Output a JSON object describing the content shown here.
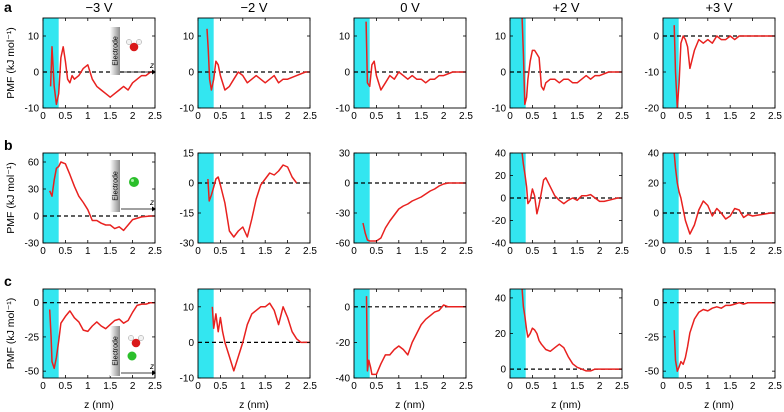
{
  "columns": [
    "−3 V",
    "−2 V",
    "0 V",
    "+2 V",
    "+3 V"
  ],
  "rows": [
    {
      "letter": "a",
      "ylabel": "PMF (kJ mol⁻¹)"
    },
    {
      "letter": "b",
      "ylabel": "PMF (kJ mol⁻¹)"
    },
    {
      "letter": "c",
      "ylabel": "PMF (kJ mol⁻¹)"
    }
  ],
  "xlabel": "z (nm)",
  "xticks": [
    "0",
    "0.5",
    "1",
    "1.5",
    "2",
    "2.5"
  ],
  "inset_labels": {
    "electrode": "Electrode",
    "z": "z"
  },
  "colors": {
    "curve": "#e8211f",
    "electrode_band": "#33e6f0",
    "zero_line": "#000000",
    "ion_green": "#2bbf2b",
    "oxygen_red": "#d9191a",
    "hydrogen_white": "#f2f2f2"
  },
  "chart_data": [
    {
      "type": "line",
      "panel": "a",
      "column": "−3 V",
      "xlim": [
        0,
        2.5
      ],
      "ylim": [
        -10,
        15
      ],
      "yticks": [
        -10,
        0,
        10
      ],
      "electrode_region": [
        0,
        0.35
      ],
      "x": [
        0.17,
        0.2,
        0.25,
        0.3,
        0.35,
        0.4,
        0.45,
        0.5,
        0.55,
        0.6,
        0.65,
        0.7,
        0.8,
        0.9,
        1.0,
        1.1,
        1.2,
        1.3,
        1.4,
        1.5,
        1.6,
        1.7,
        1.8,
        1.9,
        2.0,
        2.1,
        2.2,
        2.3,
        2.4,
        2.5
      ],
      "y": [
        -4,
        7,
        -4,
        -9,
        -6,
        4,
        7,
        3,
        -2,
        -3,
        -1,
        -2,
        -1,
        1,
        2,
        -2,
        -4,
        -5,
        -6,
        -7,
        -6,
        -5,
        -4,
        -5,
        -3,
        -2,
        -1,
        -1,
        0,
        0
      ]
    },
    {
      "type": "line",
      "panel": "a",
      "column": "−2 V",
      "xlim": [
        0,
        2.5
      ],
      "ylim": [
        -10,
        15
      ],
      "yticks": [
        -10,
        0,
        10
      ],
      "electrode_region": [
        0,
        0.35
      ],
      "x": [
        0.2,
        0.23,
        0.26,
        0.3,
        0.35,
        0.4,
        0.45,
        0.5,
        0.6,
        0.7,
        0.8,
        0.9,
        1.0,
        1.1,
        1.2,
        1.3,
        1.4,
        1.5,
        1.6,
        1.7,
        1.8,
        1.9,
        2.0,
        2.2,
        2.4,
        2.5
      ],
      "y": [
        12,
        6,
        -2,
        -5,
        -2,
        3,
        2,
        -1,
        -5,
        -4,
        -2,
        0,
        -1,
        -3,
        -2,
        -1,
        -2,
        -3,
        -2,
        -1,
        -3,
        -2,
        -2,
        -1,
        0,
        0
      ]
    },
    {
      "type": "line",
      "panel": "a",
      "column": "0 V",
      "xlim": [
        0,
        2.5
      ],
      "ylim": [
        -10,
        15
      ],
      "yticks": [
        -10,
        0,
        10
      ],
      "electrode_region": [
        0,
        0.35
      ],
      "x": [
        0.27,
        0.3,
        0.35,
        0.4,
        0.45,
        0.5,
        0.6,
        0.7,
        0.8,
        0.9,
        1.0,
        1.1,
        1.2,
        1.3,
        1.4,
        1.5,
        1.6,
        1.7,
        1.8,
        1.9,
        2.0,
        2.2,
        2.4,
        2.5
      ],
      "y": [
        14,
        -3,
        -4,
        2,
        3,
        -1,
        -5,
        -3,
        -1,
        -2,
        0,
        -1,
        -2,
        -1,
        -2,
        -2,
        -3,
        -2,
        -2,
        -1,
        -1,
        0,
        0,
        0
      ]
    },
    {
      "type": "line",
      "panel": "a",
      "column": "+2 V",
      "xlim": [
        0,
        2.5
      ],
      "ylim": [
        -10,
        15
      ],
      "yticks": [
        -10,
        0,
        10
      ],
      "electrode_region": [
        0,
        0.35
      ],
      "x": [
        0.27,
        0.3,
        0.33,
        0.37,
        0.4,
        0.45,
        0.5,
        0.55,
        0.6,
        0.65,
        0.7,
        0.75,
        0.8,
        0.9,
        1.0,
        1.1,
        1.2,
        1.3,
        1.4,
        1.5,
        1.6,
        1.7,
        1.8,
        1.9,
        2.0,
        2.2,
        2.4,
        2.5
      ],
      "y": [
        15,
        5,
        -9,
        -7,
        -2,
        3,
        6,
        6,
        5,
        4,
        -4,
        -5,
        -3,
        -2,
        -2,
        -3,
        -2,
        -2,
        -3,
        -3,
        -2,
        -1,
        -2,
        -1,
        -1,
        0,
        0,
        0
      ]
    },
    {
      "type": "line",
      "panel": "a",
      "column": "+3 V",
      "xlim": [
        0,
        2.5
      ],
      "ylim": [
        -20,
        5
      ],
      "yticks": [
        -20,
        -10,
        0
      ],
      "electrode_region": [
        0,
        0.35
      ],
      "x": [
        0.25,
        0.28,
        0.32,
        0.36,
        0.4,
        0.45,
        0.5,
        0.55,
        0.6,
        0.7,
        0.8,
        0.9,
        1.0,
        1.1,
        1.2,
        1.3,
        1.4,
        1.5,
        1.6,
        1.7,
        1.8,
        1.9,
        2.0,
        2.2,
        2.4,
        2.5
      ],
      "y": [
        3,
        -10,
        -20,
        -13,
        -2,
        0,
        -1,
        -3,
        -9,
        -4,
        -1,
        -2,
        -1,
        -2,
        0,
        -1,
        -1,
        0,
        -1,
        0,
        0,
        0,
        0,
        0,
        0,
        0
      ]
    },
    {
      "type": "line",
      "panel": "b",
      "column": "−3 V",
      "xlim": [
        0,
        2.5
      ],
      "ylim": [
        -30,
        70
      ],
      "yticks": [
        -30,
        0,
        30,
        60
      ],
      "electrode_region": [
        0,
        0.35
      ],
      "x": [
        0.15,
        0.2,
        0.25,
        0.3,
        0.35,
        0.4,
        0.5,
        0.6,
        0.7,
        0.8,
        0.9,
        1.0,
        1.1,
        1.2,
        1.3,
        1.4,
        1.5,
        1.6,
        1.7,
        1.8,
        1.9,
        2.0,
        2.2,
        2.4,
        2.5
      ],
      "y": [
        28,
        22,
        40,
        53,
        55,
        60,
        58,
        46,
        33,
        22,
        15,
        7,
        -5,
        -5,
        -8,
        -10,
        -10,
        -14,
        -12,
        -16,
        -10,
        -4,
        -1,
        0,
        0
      ]
    },
    {
      "type": "line",
      "panel": "b",
      "column": "−2 V",
      "xlim": [
        0,
        2.5
      ],
      "ylim": [
        -30,
        15
      ],
      "yticks": [
        -30,
        -15,
        0,
        15
      ],
      "electrode_region": [
        0,
        0.35
      ],
      "x": [
        0.22,
        0.25,
        0.3,
        0.35,
        0.4,
        0.45,
        0.5,
        0.6,
        0.7,
        0.8,
        0.9,
        1.0,
        1.1,
        1.2,
        1.3,
        1.4,
        1.5,
        1.6,
        1.7,
        1.8,
        1.9,
        2.0,
        2.1,
        2.2
      ],
      "y": [
        2,
        -9,
        -6,
        -2,
        2,
        3,
        -1,
        -10,
        -24,
        -27,
        -24,
        -22,
        -27,
        -18,
        -8,
        -1,
        2,
        5,
        4,
        6,
        9,
        8,
        3,
        0
      ]
    },
    {
      "type": "line",
      "panel": "b",
      "column": "0 V",
      "xlim": [
        0,
        2.5
      ],
      "ylim": [
        -60,
        30
      ],
      "yticks": [
        -60,
        -30,
        0,
        30
      ],
      "electrode_region": [
        0,
        0.35
      ],
      "x": [
        0.2,
        0.25,
        0.3,
        0.35,
        0.4,
        0.5,
        0.6,
        0.7,
        0.8,
        0.9,
        1.0,
        1.1,
        1.2,
        1.3,
        1.4,
        1.5,
        1.6,
        1.7,
        1.8,
        1.9,
        2.0,
        2.1,
        2.2,
        2.3,
        2.5
      ],
      "y": [
        -40,
        -50,
        -57,
        -58,
        -58,
        -58,
        -55,
        -45,
        -38,
        -32,
        -26,
        -23,
        -21,
        -18,
        -16,
        -14,
        -11,
        -8,
        -6,
        -3,
        -1,
        0,
        0,
        0,
        0
      ]
    },
    {
      "type": "line",
      "panel": "b",
      "column": "+2 V",
      "xlim": [
        0,
        2.5
      ],
      "ylim": [
        -40,
        40
      ],
      "yticks": [
        -40,
        -20,
        0,
        20,
        40
      ],
      "electrode_region": [
        0,
        0.35
      ],
      "x": [
        0.27,
        0.3,
        0.33,
        0.37,
        0.4,
        0.45,
        0.5,
        0.55,
        0.6,
        0.65,
        0.7,
        0.75,
        0.8,
        0.9,
        1.0,
        1.1,
        1.2,
        1.3,
        1.4,
        1.5,
        1.6,
        1.7,
        1.8,
        1.9,
        2.0,
        2.1,
        2.2,
        2.4,
        2.5
      ],
      "y": [
        40,
        30,
        22,
        10,
        -5,
        -2,
        8,
        2,
        -14,
        -6,
        5,
        16,
        18,
        10,
        2,
        -2,
        -5,
        -2,
        0,
        -2,
        2,
        2,
        3,
        0,
        -3,
        -3,
        -2,
        0,
        0
      ]
    },
    {
      "type": "line",
      "panel": "b",
      "column": "+3 V",
      "xlim": [
        0,
        2.5
      ],
      "ylim": [
        -20,
        40
      ],
      "yticks": [
        -20,
        0,
        20,
        40
      ],
      "electrode_region": [
        0,
        0.35
      ],
      "x": [
        0.25,
        0.28,
        0.32,
        0.36,
        0.4,
        0.5,
        0.6,
        0.7,
        0.8,
        0.9,
        1.0,
        1.1,
        1.2,
        1.3,
        1.4,
        1.5,
        1.6,
        1.7,
        1.8,
        1.9,
        2.0,
        2.2,
        2.4,
        2.5
      ],
      "y": [
        40,
        30,
        20,
        14,
        10,
        -5,
        -14,
        -8,
        2,
        8,
        5,
        -2,
        3,
        0,
        -4,
        -2,
        3,
        2,
        -3,
        -1,
        -2,
        -1,
        0,
        0
      ]
    },
    {
      "type": "line",
      "panel": "c",
      "column": "−3 V",
      "xlim": [
        0,
        2.5
      ],
      "ylim": [
        -55,
        10
      ],
      "yticks": [
        -50,
        -25,
        0
      ],
      "electrode_region": [
        0,
        0.35
      ],
      "x": [
        0.15,
        0.18,
        0.2,
        0.25,
        0.3,
        0.35,
        0.4,
        0.5,
        0.6,
        0.7,
        0.8,
        0.9,
        1.0,
        1.1,
        1.2,
        1.3,
        1.4,
        1.5,
        1.6,
        1.7,
        1.8,
        1.9,
        2.0,
        2.1,
        2.2,
        2.3,
        2.4,
        2.5
      ],
      "y": [
        -5,
        -25,
        -43,
        -48,
        -40,
        -28,
        -15,
        -10,
        -6,
        -11,
        -14,
        -20,
        -21,
        -17,
        -14,
        -17,
        -19,
        -16,
        -13,
        -12,
        -15,
        -13,
        -7,
        -2,
        -1,
        -1,
        0,
        0
      ]
    },
    {
      "type": "line",
      "panel": "c",
      "column": "−2 V",
      "xlim": [
        0,
        2.5
      ],
      "ylim": [
        -10,
        15
      ],
      "yticks": [
        -10,
        0,
        10
      ],
      "electrode_region": [
        0,
        0.35
      ],
      "x": [
        0.32,
        0.35,
        0.4,
        0.45,
        0.5,
        0.55,
        0.6,
        0.7,
        0.8,
        0.9,
        1.0,
        1.1,
        1.2,
        1.3,
        1.4,
        1.5,
        1.6,
        1.7,
        1.8,
        1.9,
        2.0,
        2.1,
        2.2,
        2.3,
        2.4,
        2.5
      ],
      "y": [
        10,
        4,
        8,
        3,
        7,
        3,
        0,
        -4,
        -8,
        -4,
        0,
        5,
        8,
        9,
        10,
        10,
        11,
        9,
        5,
        10,
        7,
        3,
        1,
        0,
        0,
        0
      ]
    },
    {
      "type": "line",
      "panel": "c",
      "column": "0 V",
      "xlim": [
        0,
        2.5
      ],
      "ylim": [
        -40,
        10
      ],
      "yticks": [
        -40,
        -20,
        0
      ],
      "electrode_region": [
        0,
        0.35
      ],
      "x": [
        0.28,
        0.3,
        0.33,
        0.37,
        0.4,
        0.45,
        0.5,
        0.6,
        0.7,
        0.8,
        0.9,
        1.0,
        1.1,
        1.2,
        1.3,
        1.4,
        1.5,
        1.6,
        1.7,
        1.8,
        1.9,
        2.0,
        2.1,
        2.2,
        2.3,
        2.5
      ],
      "y": [
        6,
        -36,
        -30,
        -34,
        -38,
        -38,
        -38,
        -32,
        -27,
        -27,
        -24,
        -22,
        -24,
        -27,
        -20,
        -15,
        -10,
        -7,
        -5,
        -3,
        -2,
        1,
        0,
        0,
        0,
        0
      ]
    },
    {
      "type": "line",
      "panel": "c",
      "column": "+2 V",
      "xlim": [
        0,
        2.5
      ],
      "ylim": [
        -5,
        45
      ],
      "yticks": [
        0,
        20,
        40
      ],
      "electrode_region": [
        0,
        0.35
      ],
      "x": [
        0.27,
        0.3,
        0.33,
        0.37,
        0.4,
        0.45,
        0.5,
        0.55,
        0.6,
        0.65,
        0.7,
        0.8,
        0.9,
        1.0,
        1.1,
        1.2,
        1.3,
        1.4,
        1.5,
        1.6,
        1.7,
        1.8,
        1.9,
        2.0,
        2.2,
        2.4,
        2.5
      ],
      "y": [
        45,
        35,
        30,
        22,
        18,
        20,
        23,
        22,
        20,
        16,
        14,
        11,
        10,
        12,
        14,
        12,
        7,
        3,
        1,
        0,
        -1,
        -1,
        0,
        0,
        0,
        0,
        0
      ]
    },
    {
      "type": "line",
      "panel": "c",
      "column": "+3 V",
      "xlim": [
        0,
        2.5
      ],
      "ylim": [
        -55,
        10
      ],
      "yticks": [
        -50,
        -25,
        0
      ],
      "electrode_region": [
        0,
        0.35
      ],
      "x": [
        0.25,
        0.28,
        0.32,
        0.36,
        0.4,
        0.45,
        0.5,
        0.55,
        0.6,
        0.7,
        0.8,
        0.9,
        1.0,
        1.1,
        1.2,
        1.3,
        1.4,
        1.5,
        1.6,
        1.7,
        1.8,
        1.9,
        2.0,
        2.2,
        2.4,
        2.5
      ],
      "y": [
        -20,
        -42,
        -50,
        -47,
        -43,
        -45,
        -40,
        -32,
        -22,
        -12,
        -7,
        -5,
        -6,
        -4,
        -3,
        -4,
        -2,
        -2,
        -1,
        0,
        -1,
        0,
        0,
        0,
        0,
        0
      ]
    }
  ]
}
